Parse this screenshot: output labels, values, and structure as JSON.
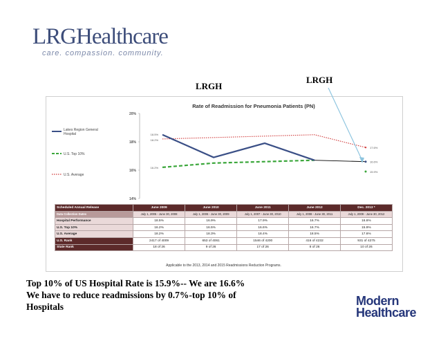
{
  "logo": {
    "name_a": "LRG",
    "name_b": "Healthcare",
    "tagline": "care. compassion. community."
  },
  "annotations": {
    "label_mid": "LRGH",
    "label_right": "LRGH"
  },
  "colors": {
    "lakes": "#3a4f86",
    "top10": "#3aa63a",
    "average": "#d03a3a",
    "header": "#5c2a2a",
    "logo": "#3d4d7a",
    "mh": "#25367a"
  },
  "chart_data": {
    "type": "line",
    "title": "Rate of Readmission for Pneumonia Patients (PN)",
    "categories": [
      "June 2009",
      "June 2010",
      "June 2011",
      "June 2012",
      "Dec. 2013 *"
    ],
    "ylim": [
      14,
      20
    ],
    "yticks": [
      "20%",
      "18%",
      "16%",
      "14%"
    ],
    "series": [
      {
        "name": "Lakes Region General Hospital",
        "values": [
          18.5,
          16.9,
          17.9,
          16.7,
          16.6
        ],
        "style": "solid"
      },
      {
        "name": "U.S. Top 10%",
        "values": [
          16.2,
          16.5,
          16.6,
          16.7,
          15.9
        ],
        "style": "dashed"
      },
      {
        "name": "U.S. Average",
        "values": [
          18.2,
          18.3,
          18.4,
          18.5,
          17.6
        ],
        "style": "dotted"
      }
    ],
    "start_labels": [
      "18.5%",
      "18.2%",
      "16.2%"
    ],
    "end_labels": [
      "17.6%",
      "16.6%",
      "15.9%"
    ],
    "table": {
      "header_label": "Scheduled Annual Release",
      "header_cols": [
        "June 2009",
        "June 2010",
        "June 2011",
        "June 2012",
        "Dec. 2013 *"
      ],
      "rows": [
        {
          "label": "Data Collection Dates",
          "cells": [
            "July 1, 2005 - June 30, 2008",
            "July 1, 2006 - June 30, 2009",
            "July 1, 2007 - June 30, 2010",
            "July 1, 2008 - June 30, 2011",
            "July 1, 2009 - June 30, 2012"
          ]
        },
        {
          "label": "Hospital Performance",
          "cells": [
            "18.5%",
            "16.9%",
            "17.9%",
            "16.7%",
            "16.6%"
          ]
        },
        {
          "label": "U.S. Top 10%",
          "cells": [
            "16.2%",
            "16.5%",
            "16.6%",
            "16.7%",
            "15.9%"
          ]
        },
        {
          "label": "U.S. Average",
          "cells": [
            "18.2%",
            "18.3%",
            "18.4%",
            "18.5%",
            "17.6%"
          ]
        },
        {
          "label": "U.S. Rank",
          "cells": [
            "2417 of 4009",
            "653 of 4061",
            "1546 of 4200",
            "416 of 4232",
            "931 of 4275"
          ]
        },
        {
          "label": "State Rank",
          "cells": [
            "18 of 26",
            "9 of 26",
            "17 of 26",
            "8 of 26",
            "10 of 26"
          ]
        }
      ],
      "note": "Applicable to the 2013, 2014 and 2015 Readmissions Reduction Programs."
    }
  },
  "caption": {
    "line1": "Top 10% of US Hospital Rate is 15.9%-- We are 16.6%",
    "line2": "We have to reduce readmissions by 0.7%-top 10% of",
    "line3": "Hospitals"
  },
  "modern_healthcare": {
    "line1": "Modern",
    "line2": "Healthcare"
  }
}
